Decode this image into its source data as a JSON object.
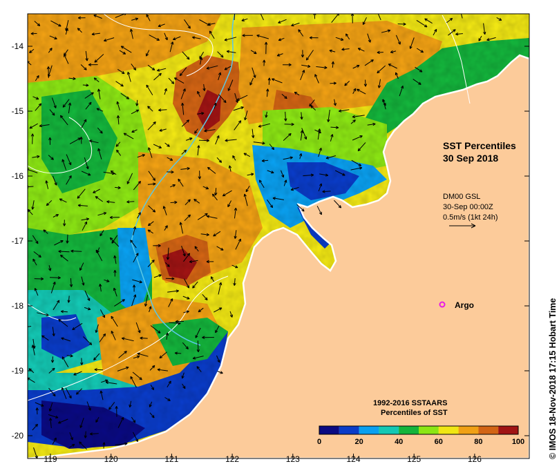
{
  "map": {
    "title_line1": "SST Percentiles",
    "title_line2": "30 Sep 2018",
    "current_source": "DM00 GSL",
    "current_time": "30-Sep 00:00Z",
    "current_scale": "0.5m/s (1kt 24h)",
    "argo_label": "Argo",
    "legend_title_line1": "1992-2016 SSTAARS",
    "legend_title_line2": "Percentiles of SST",
    "credit": "© IMOS 18-Nov-2018 17:15 Hobart Time",
    "x_ticks": [
      "119",
      "120",
      "121",
      "122",
      "123",
      "124",
      "125",
      "126"
    ],
    "y_ticks": [
      "-14",
      "-15",
      "-16",
      "-17",
      "-18",
      "-19",
      "-20"
    ],
    "legend_ticks": [
      "0",
      "20",
      "40",
      "60",
      "80",
      "100"
    ],
    "legend_colors": [
      "#0a0a82",
      "#0a3cc8",
      "#0aa0f0",
      "#14c8b4",
      "#14b43c",
      "#8ce614",
      "#f0e614",
      "#f0a014",
      "#d26414",
      "#a01414"
    ],
    "land_color": "#fccb9a",
    "argo_color": "#e81ae8"
  }
}
